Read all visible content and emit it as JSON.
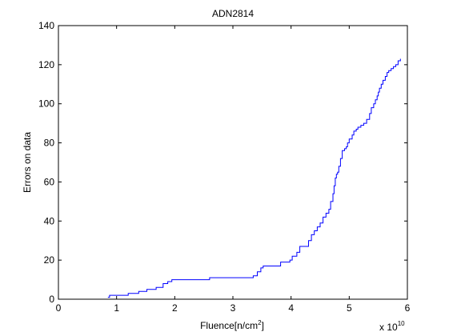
{
  "figure": {
    "title": "ADN2814",
    "xlabel": "Fluence[n/cm",
    "xlabel_sup": "2",
    "xlabel_close": "]",
    "ylabel": "Errors on data",
    "x_exponent_base": "x 10",
    "x_exponent_power": "10"
  },
  "chart_data": {
    "type": "line",
    "line_style": "staircase",
    "title": "ADN2814",
    "xlabel": "Fluence[n/cm^2]",
    "ylabel": "Errors on data",
    "xlim": [
      0,
      6
    ],
    "ylim": [
      0,
      140
    ],
    "x_scale_factor": "x 10^10",
    "x_ticks": [
      "0",
      "1",
      "2",
      "3",
      "4",
      "5",
      "6"
    ],
    "y_ticks": [
      "0",
      "20",
      "40",
      "60",
      "80",
      "100",
      "120",
      "140"
    ],
    "grid": false,
    "series": [
      {
        "color": "#0000ff",
        "x": [
          0.85,
          0.88,
          1.05,
          1.2,
          1.38,
          1.52,
          1.68,
          1.8,
          1.88,
          1.95,
          2.0,
          2.6,
          3.35,
          3.42,
          3.48,
          3.52,
          3.62,
          3.82,
          3.98,
          4.02,
          4.1,
          4.15,
          4.3,
          4.35,
          4.4,
          4.45,
          4.5,
          4.55,
          4.6,
          4.65,
          4.68,
          4.72,
          4.74,
          4.76,
          4.78,
          4.8,
          4.82,
          4.85,
          4.88,
          4.92,
          4.95,
          4.97,
          5.0,
          5.05,
          5.08,
          5.12,
          5.15,
          5.2,
          5.25,
          5.3,
          5.35,
          5.38,
          5.42,
          5.45,
          5.48,
          5.5,
          5.52,
          5.55,
          5.58,
          5.62,
          5.65,
          5.68,
          5.72,
          5.76,
          5.8,
          5.84,
          5.88
        ],
        "y": [
          1,
          2,
          2,
          3,
          4,
          5,
          6,
          8,
          9,
          10,
          10,
          11,
          12,
          14,
          16,
          17,
          17,
          19,
          20,
          22,
          24,
          27,
          30,
          33,
          35,
          37,
          39,
          42,
          44,
          46,
          50,
          54,
          58,
          62,
          64,
          65,
          68,
          72,
          76,
          77,
          78,
          80,
          82,
          84,
          86,
          87,
          88,
          89,
          90,
          92,
          95,
          98,
          100,
          102,
          104,
          106,
          108,
          110,
          112,
          114,
          116,
          117,
          118,
          119,
          120,
          122,
          123
        ]
      }
    ]
  }
}
